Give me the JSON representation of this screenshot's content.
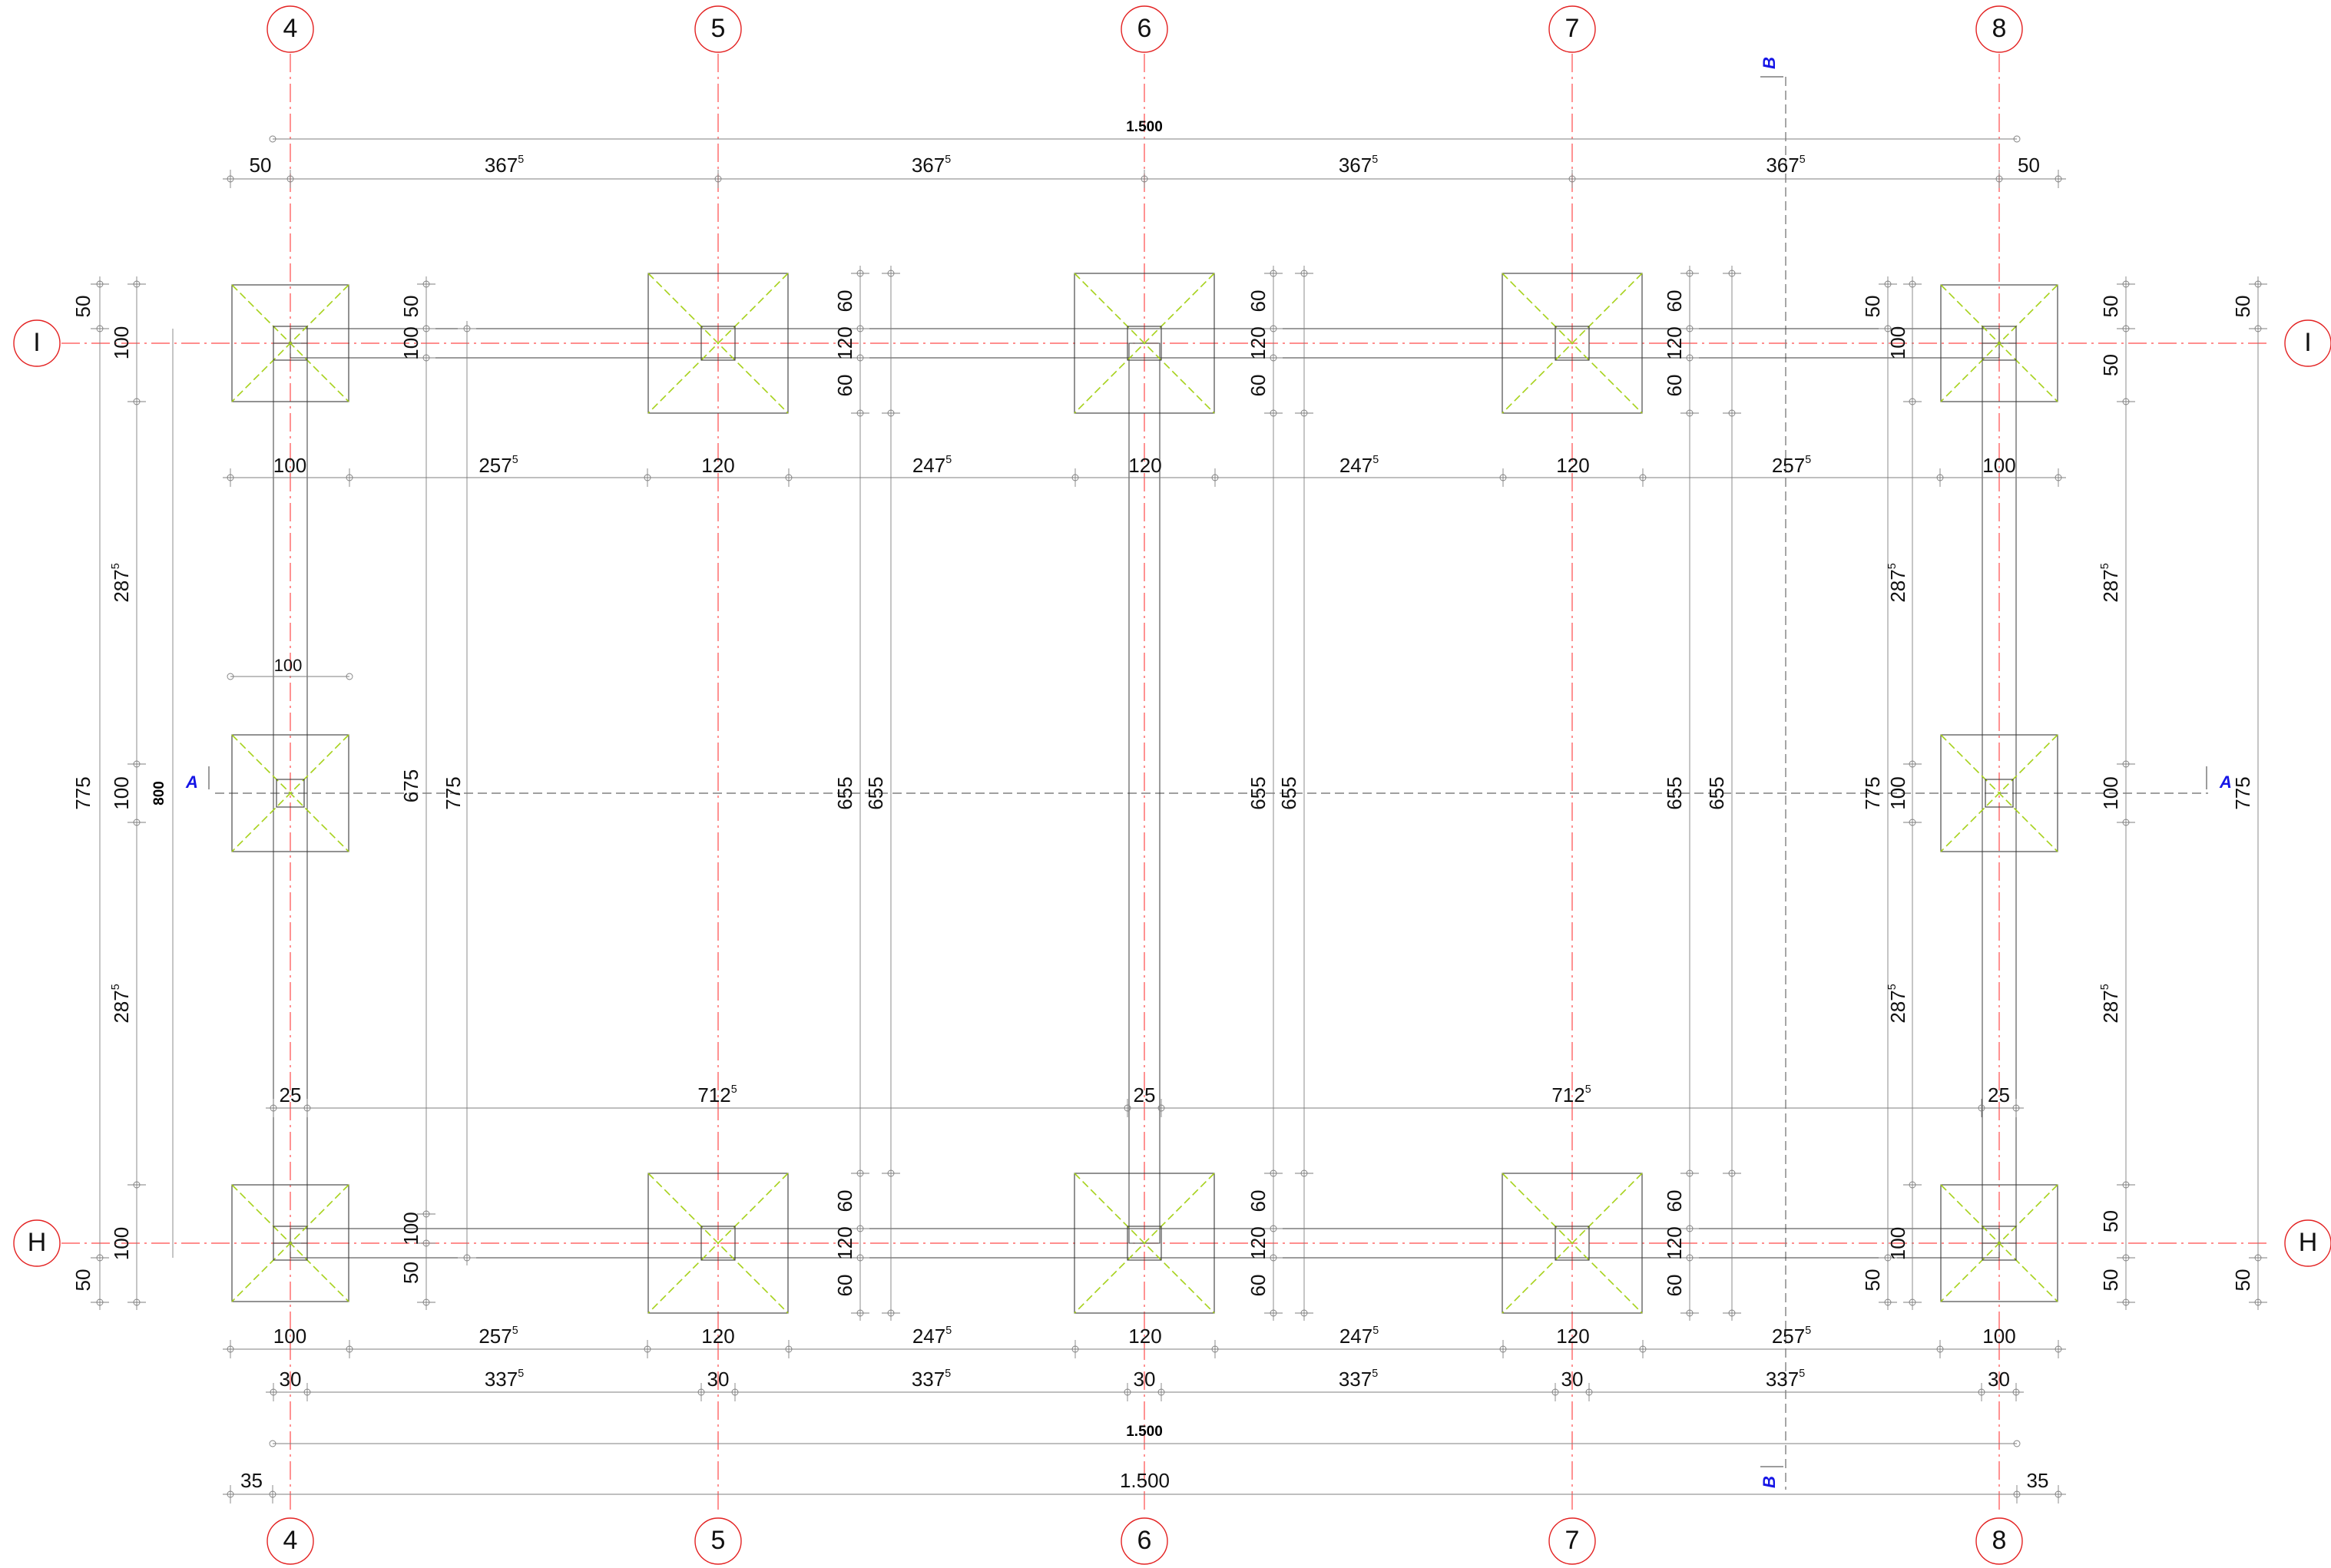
{
  "axes_vertical": [
    "4",
    "5",
    "6",
    "7",
    "8"
  ],
  "axes_horizontal": [
    "I",
    "H"
  ],
  "section_marks": {
    "horizontal": "A",
    "vertical": "B"
  },
  "colors": {
    "axis": "#ff4b4b",
    "footing_diagonal": "#a6d11a",
    "section_label": "#1515e6"
  },
  "dimensions": {
    "top_overall": "1.500",
    "top_row": [
      {
        "v": "50"
      },
      {
        "v": "367",
        "s": "5"
      },
      {
        "v": "367",
        "s": "5"
      },
      {
        "v": "367",
        "s": "5"
      },
      {
        "v": "367",
        "s": "5"
      },
      {
        "v": "50"
      }
    ],
    "mid_row_upper": [
      {
        "v": "100"
      },
      {
        "v": "257",
        "s": "5"
      },
      {
        "v": "120"
      },
      {
        "v": "247",
        "s": "5"
      },
      {
        "v": "120"
      },
      {
        "v": "247",
        "s": "5"
      },
      {
        "v": "120"
      },
      {
        "v": "257",
        "s": "5"
      },
      {
        "v": "100"
      }
    ],
    "small_100": "100",
    "mid_row_lower": [
      {
        "v": "25"
      },
      {
        "v": "712",
        "s": "5"
      },
      {
        "v": "25"
      },
      {
        "v": "712",
        "s": "5"
      },
      {
        "v": "25"
      }
    ],
    "bottom_row_1": [
      {
        "v": "100"
      },
      {
        "v": "257",
        "s": "5"
      },
      {
        "v": "120"
      },
      {
        "v": "247",
        "s": "5"
      },
      {
        "v": "120"
      },
      {
        "v": "247",
        "s": "5"
      },
      {
        "v": "120"
      },
      {
        "v": "257",
        "s": "5"
      },
      {
        "v": "100"
      }
    ],
    "bottom_row_2": [
      {
        "v": "30"
      },
      {
        "v": "337",
        "s": "5"
      },
      {
        "v": "30"
      },
      {
        "v": "337",
        "s": "5"
      },
      {
        "v": "30"
      },
      {
        "v": "337",
        "s": "5"
      },
      {
        "v": "30"
      },
      {
        "v": "337",
        "s": "5"
      },
      {
        "v": "30"
      }
    ],
    "bottom_overall_bold": "1.500",
    "bottom_row_3": [
      {
        "v": "35"
      },
      {
        "v": "1.500"
      },
      {
        "v": "35"
      }
    ],
    "left_total_bold": "800",
    "left_chain_outer": [
      {
        "v": "50"
      },
      {
        "v": "100"
      },
      {
        "v": "287",
        "s": "5"
      },
      {
        "v": "775"
      },
      {
        "v": "100"
      },
      {
        "v": "287",
        "s": "5"
      },
      {
        "v": "100"
      },
      {
        "v": "50"
      }
    ],
    "left_chain_inner": [
      {
        "v": "100"
      },
      {
        "v": "50"
      },
      {
        "v": "675"
      },
      {
        "v": "775"
      },
      {
        "v": "100"
      },
      {
        "v": "50"
      }
    ],
    "interior_chain_a": [
      {
        "v": "60"
      },
      {
        "v": "120"
      },
      {
        "v": "60"
      },
      {
        "v": "655"
      },
      {
        "v": "655"
      },
      {
        "v": "60"
      },
      {
        "v": "120"
      },
      {
        "v": "60"
      }
    ],
    "interior_chain_b": [
      {
        "v": "60"
      },
      {
        "v": "120"
      },
      {
        "v": "60"
      },
      {
        "v": "655"
      },
      {
        "v": "655"
      },
      {
        "v": "60"
      },
      {
        "v": "120"
      },
      {
        "v": "60"
      }
    ],
    "interior_chain_c": [
      {
        "v": "60"
      },
      {
        "v": "120"
      },
      {
        "v": "60"
      },
      {
        "v": "655"
      },
      {
        "v": "655"
      },
      {
        "v": "60"
      },
      {
        "v": "120"
      },
      {
        "v": "60"
      }
    ],
    "right_chain_inner": [
      {
        "v": "50"
      },
      {
        "v": "100"
      },
      {
        "v": "287",
        "s": "5"
      },
      {
        "v": "775"
      },
      {
        "v": "100"
      },
      {
        "v": "287",
        "s": "5"
      },
      {
        "v": "100"
      },
      {
        "v": "50"
      }
    ],
    "right_chain_outer": [
      {
        "v": "50"
      },
      {
        "v": "50"
      },
      {
        "v": "287",
        "s": "5"
      },
      {
        "v": "100"
      },
      {
        "v": "287",
        "s": "5"
      },
      {
        "v": "50"
      },
      {
        "v": "50"
      }
    ],
    "right_edge": [
      {
        "v": "50"
      },
      {
        "v": "775"
      },
      {
        "v": "50"
      }
    ]
  }
}
